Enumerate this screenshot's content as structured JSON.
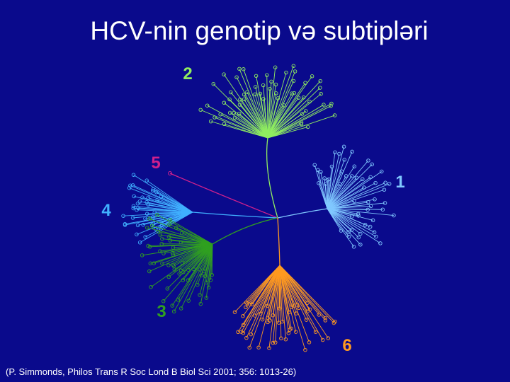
{
  "title": "HCV-nin genotip və subtipləri",
  "clades": [
    {
      "label": "2"
    },
    {
      "label": "5"
    },
    {
      "label": "1"
    },
    {
      "label": "4"
    },
    {
      "label": "3"
    },
    {
      "label": "6"
    }
  ],
  "citation": "(P. Simmonds, Philos Trans R Soc Lond B Biol Sci 2001; 356: 1013-26)"
}
